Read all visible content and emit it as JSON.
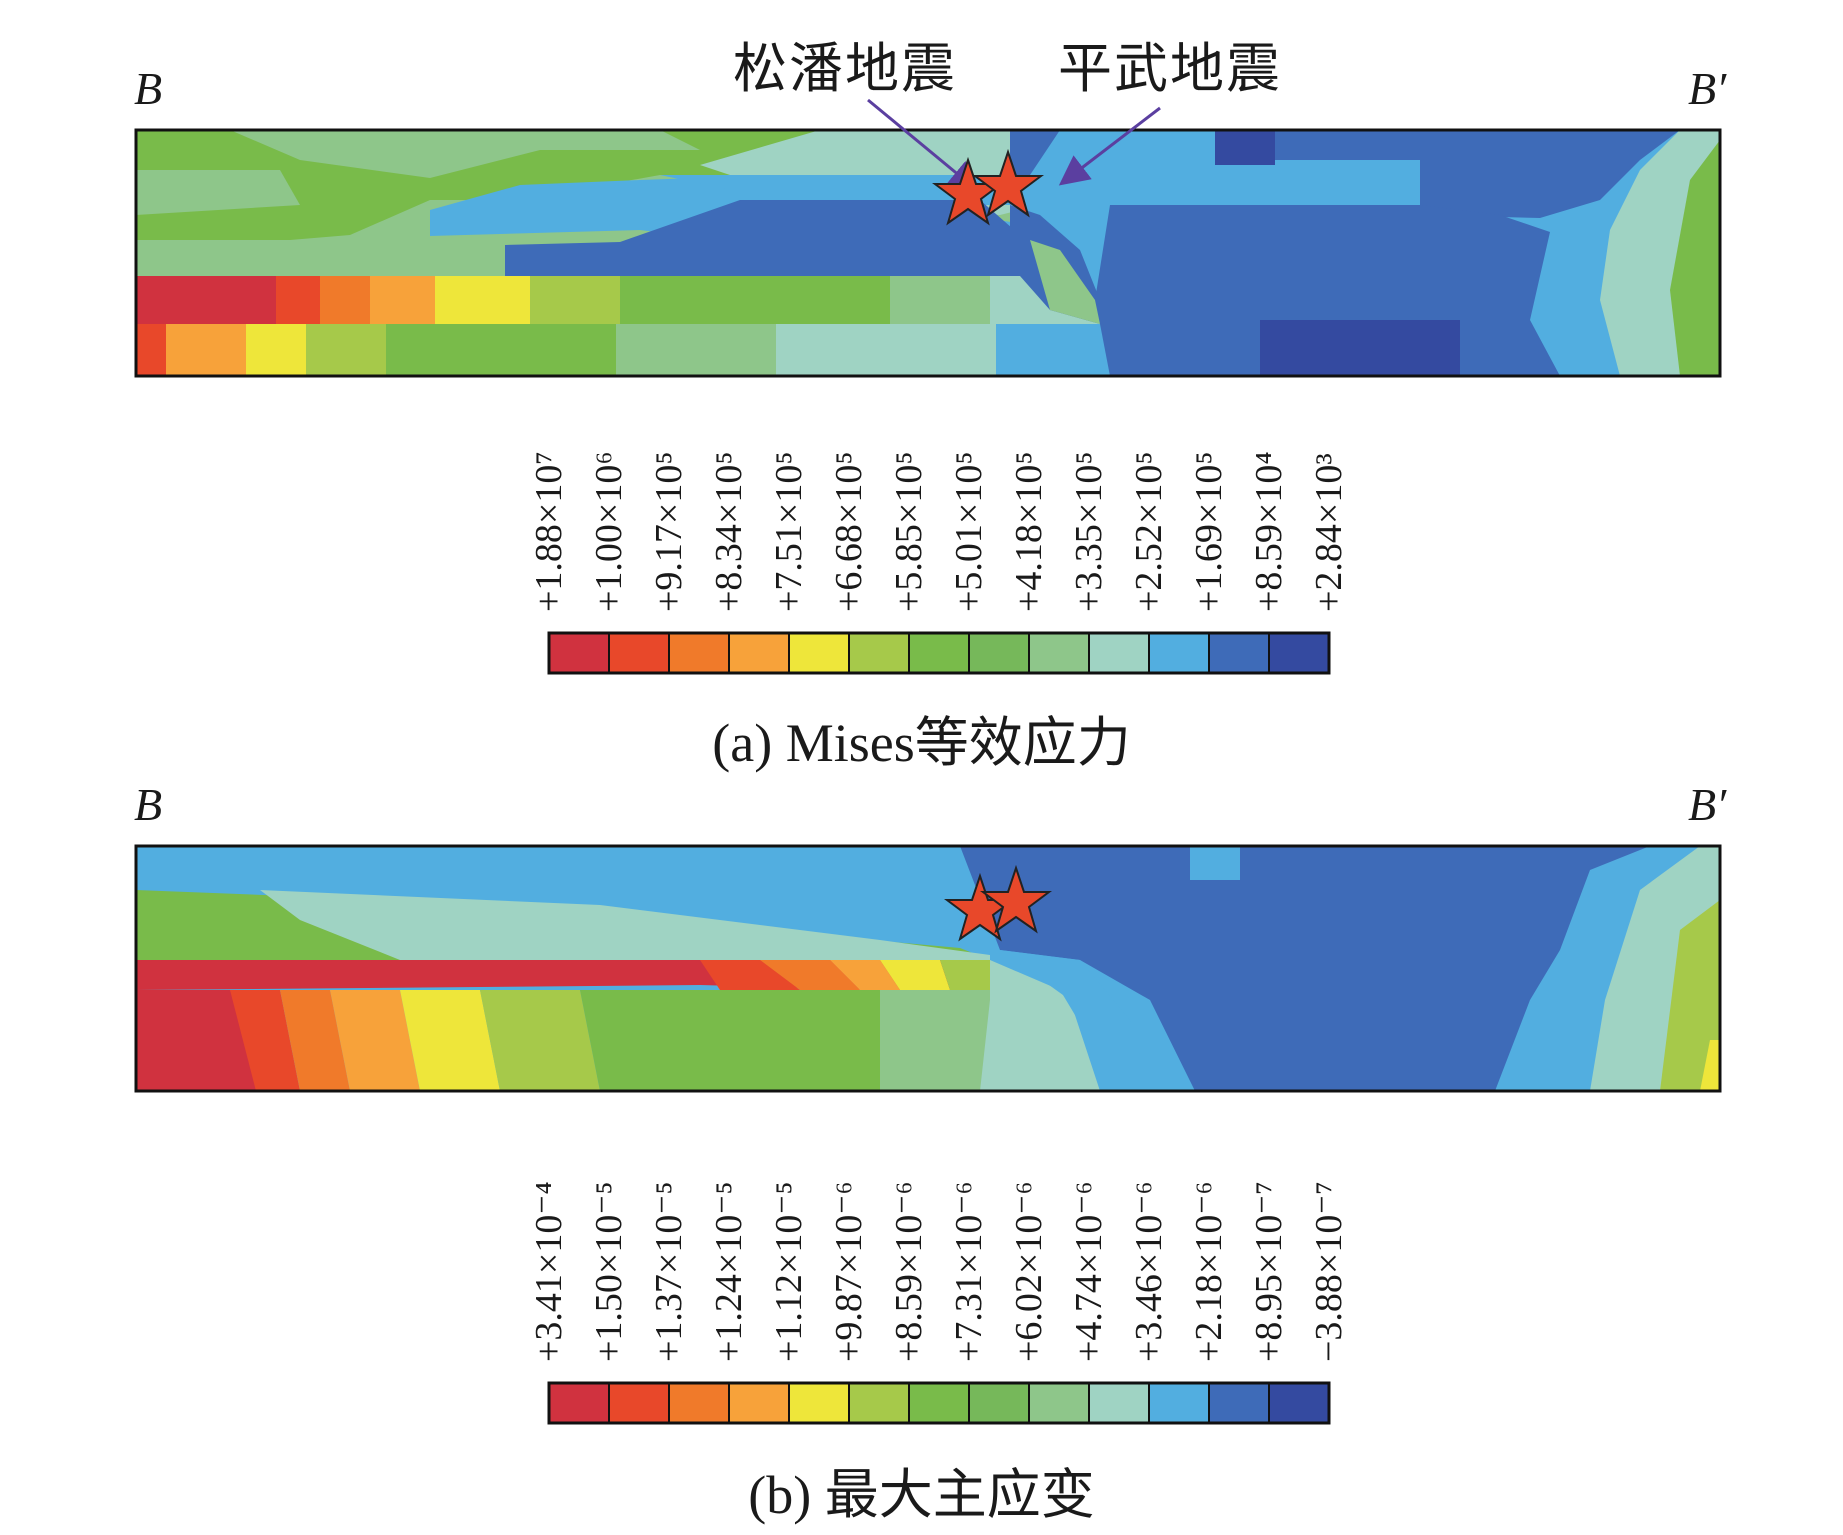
{
  "endpoints": {
    "start": "B",
    "end": "B′"
  },
  "earthquakes": [
    {
      "name": "松潘地震"
    },
    {
      "name": "平武地震"
    }
  ],
  "panels": [
    {
      "caption": "(a) Mises等效应力",
      "legend_ticks": [
        "+1.88×10⁷",
        "+1.00×10⁶",
        "+9.17×10⁵",
        "+8.34×10⁵",
        "+7.51×10⁵",
        "+6.68×10⁵",
        "+5.85×10⁵",
        "+5.01×10⁵",
        "+4.18×10⁵",
        "+3.35×10⁵",
        "+2.52×10⁵",
        "+1.69×10⁵",
        "+8.59×10⁴",
        "+2.84×10³"
      ]
    },
    {
      "caption": "(b) 最大主应变",
      "legend_ticks": [
        "+3.41×10⁻⁴",
        "+1.50×10⁻⁵",
        "+1.37×10⁻⁵",
        "+1.24×10⁻⁵",
        "+1.12×10⁻⁵",
        "+9.87×10⁻⁶",
        "+8.59×10⁻⁶",
        "+7.31×10⁻⁶",
        "+6.02×10⁻⁶",
        "+4.74×10⁻⁶",
        "+3.46×10⁻⁶",
        "+2.18×10⁻⁶",
        "+8.95×10⁻⁷",
        "−3.88×10⁻⁷"
      ]
    }
  ],
  "colormap": [
    "#d0323f",
    "#e8482a",
    "#f07a2a",
    "#f7a23a",
    "#eee63a",
    "#a6c94a",
    "#79bb4a",
    "#76b85a",
    "#8ec68a",
    "#9fd3c3",
    "#52aee0",
    "#3e6bb8",
    "#344aa0"
  ]
}
